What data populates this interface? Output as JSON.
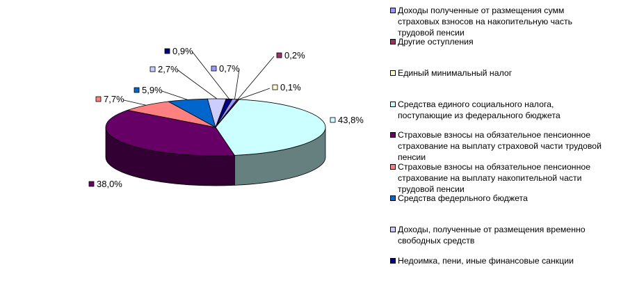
{
  "chart_data": {
    "type": "pie",
    "title": "",
    "series": [
      {
        "values": [
          0.1,
          43.8,
          38.0,
          7.7,
          5.9,
          2.7,
          0.9,
          0.7,
          0.2
        ]
      }
    ],
    "slices": [
      {
        "legend": "Единый минимальный налог",
        "value": 0.1,
        "label": "0,1%",
        "color": "#FFFFCC"
      },
      {
        "legend": "Средства единого социального налога, поступающие из федерального бюджета",
        "value": 43.8,
        "label": "43,8%",
        "color": "#CCFFFF"
      },
      {
        "legend": "Страховые взносы на обязательное пенсионное страхование на выплату страховой части трудовой пенсии",
        "value": 38.0,
        "label": "38,0%",
        "color": "#660066"
      },
      {
        "legend": "Страховые взносы на обязательное пенсионное страхование на выплату накопительной части трудовой пенсии",
        "value": 7.7,
        "label": "7,7%",
        "color": "#FF8080"
      },
      {
        "legend": "Средства федерльного бюджета",
        "value": 5.9,
        "label": "5,9%",
        "color": "#0066CC"
      },
      {
        "legend": "Доходы, полученные от размещения временно свободных средств",
        "value": 2.7,
        "label": "2,7%",
        "color": "#CCCCFF"
      },
      {
        "legend": "Недоимка, пени, иные финансовые санкции",
        "value": 0.9,
        "label": "0,9%",
        "color": "#000080"
      },
      {
        "legend": "Доходы полученные от размещения сумм страховых взносов на накопительную часть трудовой пенсии",
        "value": 0.7,
        "label": "0,7%",
        "color": "#9999FF"
      },
      {
        "legend": "Другие оступления",
        "value": 0.2,
        "label": "0,2%",
        "color": "#993366"
      }
    ],
    "legend": {
      "position": "right",
      "items": [
        {
          "text": "Доходы полученные от размещения сумм страховых взносов на накопительную часть трудовой пенсии",
          "color": "#9999FF"
        },
        {
          "text": "Другие оступления",
          "color": "#993366"
        },
        {
          "text": "Единый минимальный налог",
          "color": "#FFFFCC"
        },
        {
          "text": "Средства единого социального налога, поступающие из федерального бюджета",
          "color": "#CCFFFF"
        },
        {
          "text": "Страховые взносы на обязательное пенсионное страхование на выплату страховой части трудовой пенсии",
          "color": "#660066"
        },
        {
          "text": "Страховые взносы на обязательное пенсионное страхование на выплату накопительной части трудовой пенсии",
          "color": "#FF8080"
        },
        {
          "text": "Средства федерльного бюджета",
          "color": "#0066CC"
        },
        {
          "text": "Доходы, полученные от размещения временно свободных средств",
          "color": "#CCCCFF"
        },
        {
          "text": "Недоимка, пени, иные финансовые санкции",
          "color": "#000080"
        }
      ]
    }
  }
}
